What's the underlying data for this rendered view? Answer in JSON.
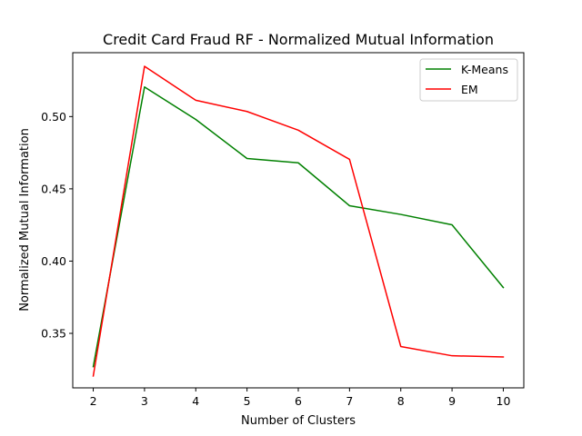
{
  "chart_data": {
    "type": "line",
    "title": "Credit Card Fraud RF - Normalized Mutual Information",
    "xlabel": "Number of Clusters",
    "ylabel": "Normalized Mutual Information",
    "x": [
      2,
      3,
      4,
      5,
      6,
      7,
      8,
      9,
      10
    ],
    "xlim": [
      1.6,
      10.4
    ],
    "ylim": [
      0.3123,
      0.5442
    ],
    "xticks": [
      "2",
      "3",
      "4",
      "5",
      "6",
      "7",
      "8",
      "9",
      "10"
    ],
    "yticks": [
      "0.35",
      "0.40",
      "0.45",
      "0.50"
    ],
    "ytick_values": [
      0.35,
      0.4,
      0.45,
      0.5
    ],
    "grid": false,
    "legend_position": "top-right",
    "series": [
      {
        "name": "K-Means",
        "color": "#008000",
        "values": [
          0.327,
          0.5205,
          0.498,
          0.471,
          0.468,
          0.4383,
          0.4323,
          0.4251,
          0.3817
        ]
      },
      {
        "name": "EM",
        "color": "#ff0000",
        "values": [
          0.3205,
          0.5348,
          0.5113,
          0.5035,
          0.4906,
          0.4704,
          0.3409,
          0.3345,
          0.3337
        ]
      }
    ]
  }
}
